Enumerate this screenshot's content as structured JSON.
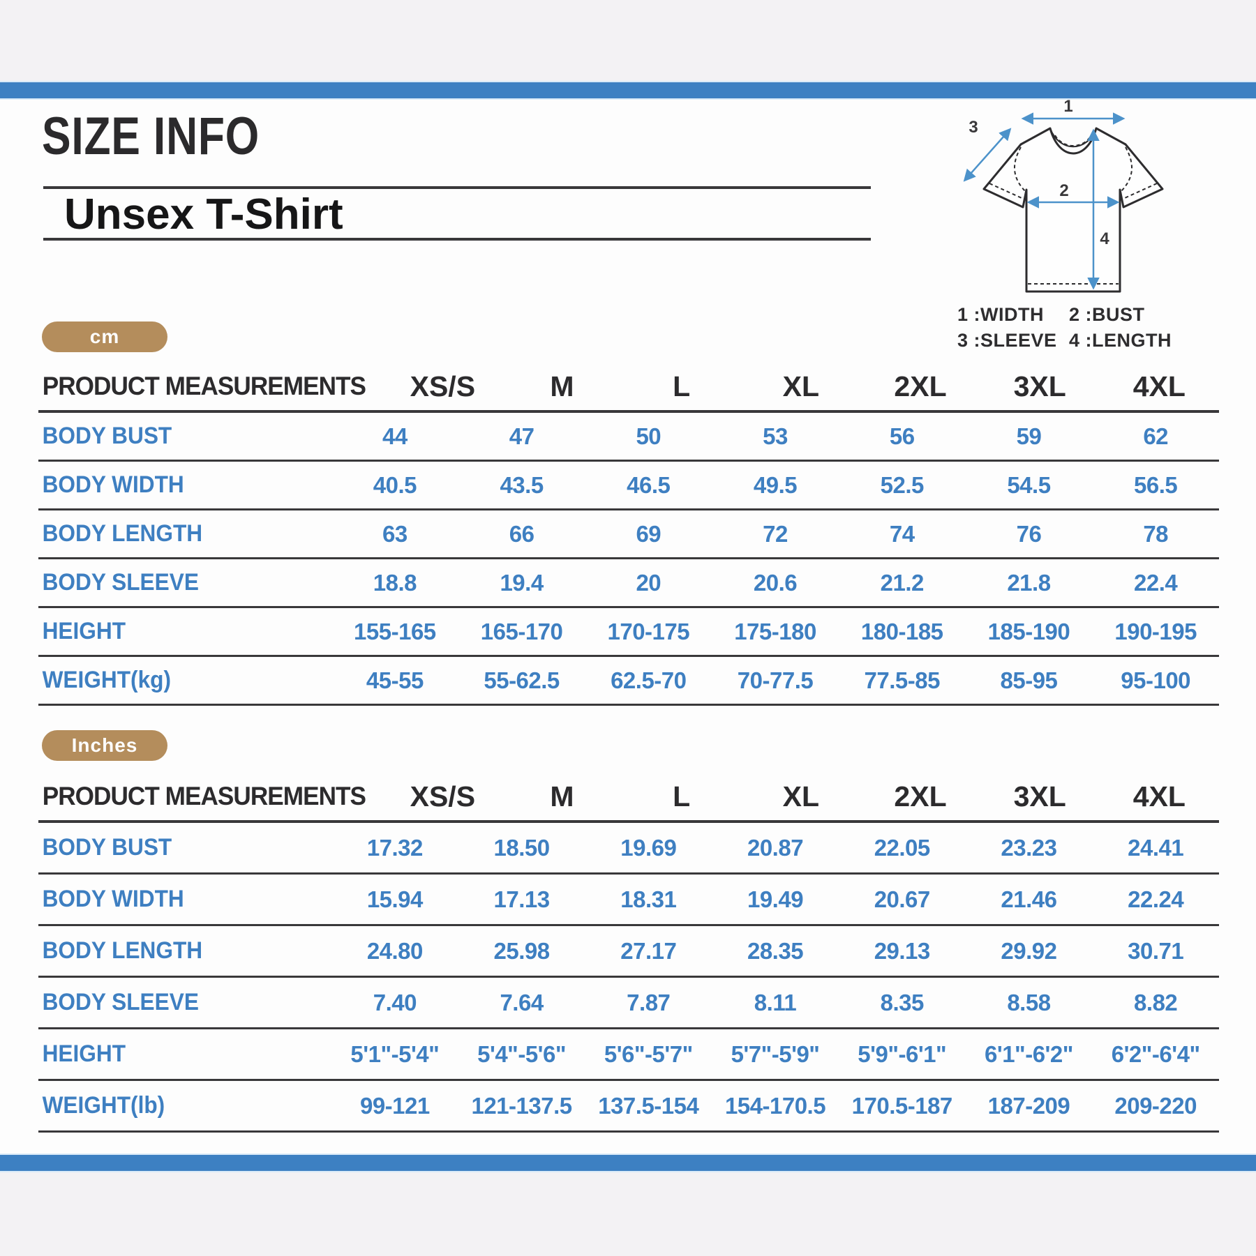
{
  "header": {
    "title": "SIZE INFO",
    "subtitle": "Unsex T-Shirt"
  },
  "diagram": {
    "marks": [
      "1",
      "2",
      "3",
      "4"
    ],
    "legend": [
      "1 :WIDTH",
      "2 :BUST",
      "3 :SLEEVE",
      "4 :LENGTH"
    ]
  },
  "colors": {
    "bar_blue": "#3d80c2",
    "table_text_blue": "#3e7fc1",
    "badge_tan": "#b48d5c",
    "line_dark": "#39383a",
    "arrow_blue": "#4c92ca"
  },
  "tables": [
    {
      "unit": "cm",
      "columns_label": "PRODUCT MEASUREMENTS",
      "sizes": [
        "XS/S",
        "M",
        "L",
        "XL",
        "2XL",
        "3XL",
        "4XL"
      ],
      "rows": [
        {
          "label": "BODY BUST",
          "values": [
            "44",
            "47",
            "50",
            "53",
            "56",
            "59",
            "62"
          ]
        },
        {
          "label": "BODY WIDTH",
          "values": [
            "40.5",
            "43.5",
            "46.5",
            "49.5",
            "52.5",
            "54.5",
            "56.5"
          ]
        },
        {
          "label": "BODY LENGTH",
          "values": [
            "63",
            "66",
            "69",
            "72",
            "74",
            "76",
            "78"
          ]
        },
        {
          "label": "BODY SLEEVE",
          "values": [
            "18.8",
            "19.4",
            "20",
            "20.6",
            "21.2",
            "21.8",
            "22.4"
          ]
        },
        {
          "label": "HEIGHT",
          "values": [
            "155-165",
            "165-170",
            "170-175",
            "175-180",
            "180-185",
            "185-190",
            "190-195"
          ]
        },
        {
          "label": "WEIGHT(kg)",
          "values": [
            "45-55",
            "55-62.5",
            "62.5-70",
            "70-77.5",
            "77.5-85",
            "85-95",
            "95-100"
          ]
        }
      ]
    },
    {
      "unit": "Inches",
      "columns_label": "PRODUCT MEASUREMENTS",
      "sizes": [
        "XS/S",
        "M",
        "L",
        "XL",
        "2XL",
        "3XL",
        "4XL"
      ],
      "rows": [
        {
          "label": "BODY BUST",
          "values": [
            "17.32",
            "18.50",
            "19.69",
            "20.87",
            "22.05",
            "23.23",
            "24.41"
          ]
        },
        {
          "label": "BODY WIDTH",
          "values": [
            "15.94",
            "17.13",
            "18.31",
            "19.49",
            "20.67",
            "21.46",
            "22.24"
          ]
        },
        {
          "label": "BODY LENGTH",
          "values": [
            "24.80",
            "25.98",
            "27.17",
            "28.35",
            "29.13",
            "29.92",
            "30.71"
          ]
        },
        {
          "label": "BODY SLEEVE",
          "values": [
            "7.40",
            "7.64",
            "7.87",
            "8.11",
            "8.35",
            "8.58",
            "8.82"
          ]
        },
        {
          "label": "HEIGHT",
          "values": [
            "5'1\"-5'4\"",
            "5'4\"-5'6\"",
            "5'6\"-5'7\"",
            "5'7\"-5'9\"",
            "5'9\"-6'1\"",
            "6'1\"-6'2\"",
            "6'2\"-6'4\""
          ]
        },
        {
          "label": "WEIGHT(lb)",
          "values": [
            "99-121",
            "121-137.5",
            "137.5-154",
            "154-170.5",
            "170.5-187",
            "187-209",
            "209-220"
          ]
        }
      ]
    }
  ]
}
